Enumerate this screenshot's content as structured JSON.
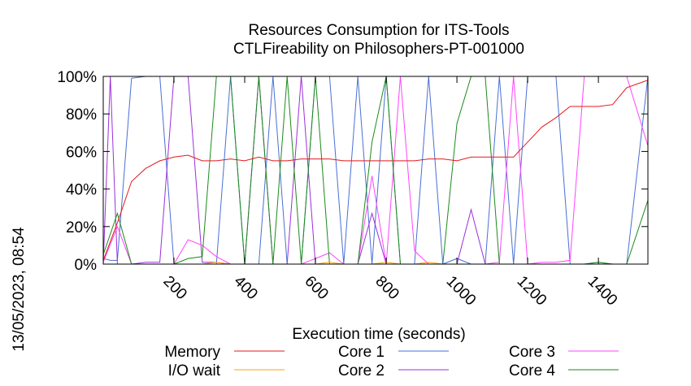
{
  "chart_data": {
    "type": "line",
    "title": "Resources Consumption for ITS-Tools",
    "subtitle": "CTLFireability on Philosophers-PT-001000",
    "xlabel": "Execution time (seconds)",
    "ylabel": "",
    "side_label": "13/05/2023, 08:54",
    "xlim": [
      0,
      1540
    ],
    "ylim": [
      0,
      100
    ],
    "x_ticks": [
      200,
      400,
      600,
      800,
      1000,
      1200,
      1400
    ],
    "y_ticks": [
      0,
      20,
      40,
      60,
      80,
      100
    ],
    "y_tick_labels": [
      "0%",
      "20%",
      "40%",
      "60%",
      "80%",
      "100%"
    ],
    "grid": false,
    "legend_position": "bottom",
    "colors": {
      "memory": "#e41a1c",
      "io_wait": "#ffa500",
      "core1": "#4a6fd4",
      "core2": "#9b30d9",
      "core3": "#ff44ff",
      "core4": "#1b8a1b"
    },
    "series": [
      {
        "name": "Memory",
        "key": "memory",
        "x": [
          0,
          40,
          80,
          120,
          160,
          200,
          240,
          280,
          320,
          360,
          400,
          440,
          480,
          520,
          560,
          600,
          640,
          680,
          720,
          760,
          800,
          840,
          880,
          920,
          960,
          1000,
          1040,
          1080,
          1120,
          1160,
          1200,
          1240,
          1280,
          1320,
          1360,
          1400,
          1440,
          1480,
          1540
        ],
        "y": [
          2,
          22,
          44,
          51,
          55,
          57,
          58,
          55,
          55,
          56,
          55,
          57,
          55,
          55,
          56,
          56,
          56,
          55,
          55,
          55,
          55,
          55,
          55,
          56,
          56,
          55,
          57,
          57,
          57,
          57,
          65,
          73,
          78,
          84,
          84,
          84,
          85,
          94,
          98
        ]
      },
      {
        "name": "I/O wait",
        "key": "io_wait",
        "x": [
          0,
          40,
          80,
          120,
          160,
          200,
          240,
          280,
          320,
          360,
          400,
          440,
          480,
          520,
          560,
          600,
          640,
          680,
          720,
          760,
          800,
          840,
          880,
          920,
          960,
          1000,
          1040,
          1080,
          1120,
          1160,
          1200,
          1240,
          1280,
          1320,
          1360,
          1400,
          1440,
          1480,
          1540
        ],
        "y": [
          0,
          0,
          0,
          0,
          0,
          0,
          0,
          0,
          1,
          0,
          0,
          0,
          0,
          0,
          0,
          0,
          1,
          0,
          0,
          0,
          1,
          0,
          0,
          1,
          0,
          0,
          0,
          0,
          0,
          0,
          0,
          0,
          0,
          0,
          0,
          0,
          0,
          0,
          0
        ]
      },
      {
        "name": "Core 1",
        "key": "core1",
        "x": [
          0,
          20,
          40,
          80,
          120,
          160,
          200,
          240,
          280,
          320,
          360,
          400,
          440,
          480,
          520,
          560,
          600,
          640,
          680,
          720,
          760,
          800,
          840,
          880,
          920,
          960,
          1000,
          1040,
          1080,
          1120,
          1160,
          1200,
          1240,
          1280,
          1320,
          1360,
          1400,
          1440,
          1480,
          1540
        ],
        "y": [
          3,
          2,
          2,
          99,
          100,
          100,
          0,
          0,
          0,
          0,
          100,
          0,
          0,
          100,
          0,
          0,
          100,
          100,
          0,
          100,
          0,
          100,
          0,
          0,
          100,
          0,
          3,
          0,
          0,
          100,
          0,
          100,
          100,
          100,
          0,
          0,
          1,
          0,
          0,
          100
        ]
      },
      {
        "name": "Core 2",
        "key": "core2",
        "x": [
          0,
          20,
          40,
          80,
          120,
          160,
          200,
          240,
          280,
          320,
          360,
          400,
          440,
          480,
          520,
          560,
          600,
          640,
          680,
          720,
          760,
          800,
          840,
          880,
          920,
          960,
          1000,
          1040,
          1080,
          1120,
          1160,
          1200,
          1240,
          1280,
          1320,
          1360,
          1400,
          1440,
          1480,
          1540
        ],
        "y": [
          0,
          100,
          0,
          0,
          1,
          1,
          100,
          100,
          1,
          1,
          0,
          0,
          100,
          0,
          0,
          100,
          0,
          0,
          0,
          0,
          27,
          0,
          0,
          0,
          0,
          0,
          0,
          29,
          0,
          0,
          0,
          0,
          0,
          0,
          0,
          0,
          0,
          0,
          0,
          0
        ]
      },
      {
        "name": "Core 3",
        "key": "core3",
        "x": [
          0,
          40,
          80,
          120,
          160,
          200,
          240,
          280,
          320,
          360,
          400,
          440,
          480,
          520,
          560,
          600,
          640,
          680,
          720,
          760,
          800,
          840,
          880,
          920,
          960,
          1000,
          1040,
          1080,
          1120,
          1160,
          1200,
          1240,
          1280,
          1320,
          1360,
          1400,
          1440,
          1480,
          1540
        ],
        "y": [
          1,
          20,
          0,
          0,
          0,
          0,
          13,
          10,
          4,
          0,
          0,
          0,
          0,
          0,
          0,
          3,
          6,
          0,
          0,
          47,
          0,
          100,
          7,
          0,
          0,
          0,
          0,
          0,
          1,
          100,
          0,
          1,
          1,
          2,
          100,
          100,
          100,
          100,
          63
        ]
      },
      {
        "name": "Core 4",
        "key": "core4",
        "x": [
          0,
          40,
          80,
          120,
          160,
          200,
          240,
          280,
          320,
          360,
          400,
          440,
          480,
          520,
          560,
          600,
          640,
          680,
          720,
          760,
          800,
          840,
          880,
          920,
          960,
          1000,
          1040,
          1080,
          1120,
          1160,
          1200,
          1240,
          1280,
          1320,
          1360,
          1400,
          1440,
          1480,
          1540
        ],
        "y": [
          5,
          27,
          0,
          0,
          0,
          0,
          3,
          4,
          100,
          100,
          0,
          100,
          0,
          100,
          0,
          100,
          0,
          0,
          0,
          65,
          100,
          0,
          0,
          0,
          0,
          75,
          100,
          100,
          0,
          0,
          0,
          0,
          0,
          0,
          0,
          1,
          0,
          0,
          34
        ]
      }
    ]
  }
}
